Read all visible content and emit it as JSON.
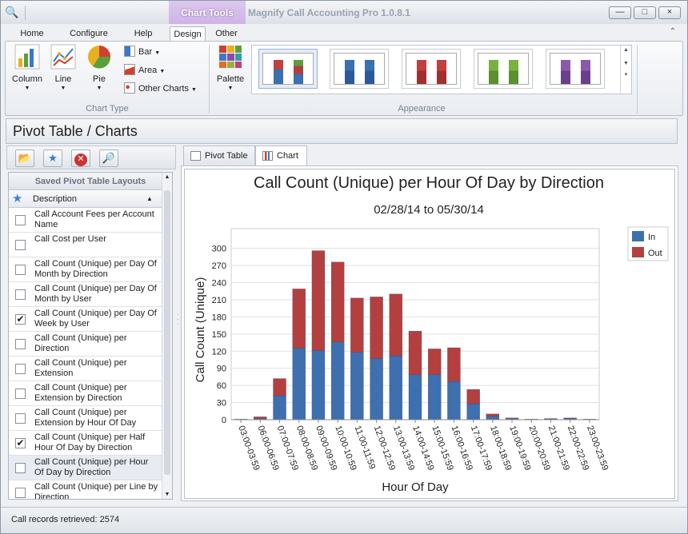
{
  "window": {
    "context_tab": "Chart Tools",
    "app_title": "Magnify Call Accounting Pro 1.0.8.1",
    "min_label": "—",
    "max_label": "□",
    "close_label": "×"
  },
  "ribbon": {
    "tabs": [
      "Home",
      "Configure",
      "Help",
      "Design",
      "Other"
    ],
    "active_tab": "Design",
    "chart_type": {
      "label": "Chart Type",
      "column": "Column",
      "line": "Line",
      "pie": "Pie",
      "bar": "Bar",
      "area": "Area",
      "other": "Other Charts"
    },
    "appearance": {
      "label": "Appearance",
      "palette": "Palette"
    }
  },
  "section_title": "Pivot Table / Charts",
  "left_panel": {
    "list_title": "Saved Pivot Table Layouts",
    "column_header": "Description",
    "items": [
      {
        "label": "Call Account Fees per Account Name",
        "checked": false
      },
      {
        "label": "Call Cost per User",
        "checked": false
      },
      {
        "label": "Call Count (Unique) per Day Of Month by Direction",
        "checked": false
      },
      {
        "label": "Call Count (Unique) per Day Of Month by User",
        "checked": false
      },
      {
        "label": "Call Count (Unique) per Day Of Week by User",
        "checked": true
      },
      {
        "label": "Call Count (Unique) per Direction",
        "checked": false
      },
      {
        "label": "Call Count (Unique) per Extension",
        "checked": false
      },
      {
        "label": "Call Count (Unique) per Extension by Direction",
        "checked": false
      },
      {
        "label": "Call Count (Unique) per Extension by Hour Of Day",
        "checked": false
      },
      {
        "label": "Call Count (Unique) per Half Hour Of Day by Direction",
        "checked": true
      },
      {
        "label": "Call Count (Unique) per Hour Of Day by Direction",
        "checked": false
      },
      {
        "label": "Call Count (Unique) per Line by Direction",
        "checked": false
      }
    ]
  },
  "tabs": {
    "pivot": "Pivot Table",
    "chart": "Chart"
  },
  "status": "Call records retrieved: 2574",
  "chart_data": {
    "type": "bar",
    "stacked": true,
    "title": "Call Count (Unique) per Hour Of Day by Direction",
    "subtitle": "02/28/14 to 05/30/14",
    "xlabel": "Hour Of Day",
    "ylabel": "Call Count (Unique)",
    "ylim": [
      0,
      315
    ],
    "yticks": [
      0,
      30,
      60,
      90,
      120,
      150,
      180,
      210,
      240,
      270,
      300
    ],
    "grid": true,
    "legend": "top-right",
    "categories": [
      "03:00-03:59",
      "06:00-06:59",
      "07:00-07:59",
      "08:00-08:59",
      "09:00-09:59",
      "10:00-10:59",
      "11:00-11:59",
      "12:00-12:59",
      "13:00-13:59",
      "14:00-14:59",
      "15:00-15:59",
      "16:00-16:59",
      "17:00-17:59",
      "18:00-18:59",
      "19:00-19:59",
      "20:00-20:59",
      "21:00-21:59",
      "22:00-22:59",
      "23:00-23:59"
    ],
    "series": [
      {
        "name": "In",
        "color": "#3e6fae",
        "values": [
          1,
          2,
          42,
          125,
          121,
          136,
          118,
          107,
          112,
          79,
          79,
          67,
          28,
          6,
          2,
          1,
          1,
          2,
          1
        ]
      },
      {
        "name": "Out",
        "color": "#b3403f",
        "values": [
          0,
          3,
          30,
          104,
          175,
          140,
          95,
          108,
          108,
          76,
          45,
          59,
          25,
          4,
          1,
          0,
          1,
          1,
          0
        ]
      }
    ]
  }
}
